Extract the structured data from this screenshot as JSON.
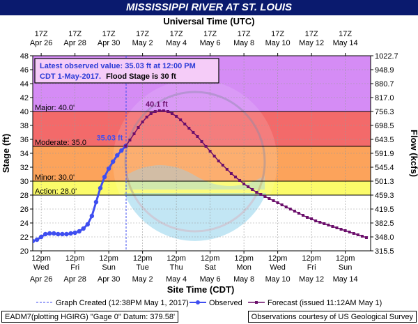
{
  "title": "MISSISSIPPI RIVER AT ST. LOUIS",
  "colors": {
    "title_bg": "#0a1a6e",
    "above_major": "#d58cf5",
    "major": "#f36a6a",
    "moderate": "#fca35b",
    "minor": "#fbfb6a",
    "below": "#ffffff",
    "observed": "#3f4ef0",
    "forecast": "#6b0f6b"
  },
  "info_box": {
    "line1": "Latest observed value: 35.03 ft at 12:00 PM",
    "line2": "CDT 1-May-2017.",
    "line2b": "Flood Stage is 30 ft"
  },
  "legend": {
    "created": "Graph Created (12:38PM May 1, 2017)",
    "observed": "Observed",
    "forecast": "Forecast (issued 11:12AM May 1)"
  },
  "footer": {
    "left": "EADM7(plotting HGIRG) \"Gage 0\" Datum: 379.58'",
    "right": "Observations courtesy of US Geological Survey"
  },
  "chart_data": {
    "type": "line",
    "title": "MISSISSIPPI RIVER AT ST. LOUIS",
    "xlabel": "Site Time (CDT)",
    "x2label": "Universal Time (UTC)",
    "ylabel": "Stage (ft)",
    "y2label": "Flow (kcfs)",
    "ylim": [
      20,
      48
    ],
    "y_ticks": [
      20,
      22,
      24,
      26,
      28,
      30,
      32,
      34,
      36,
      38,
      40,
      42,
      44,
      46,
      48
    ],
    "flow_ticks": [
      "315.5",
      "348.0",
      "382.5",
      "419.5",
      "459.3",
      "501.3",
      "545.4",
      "591.9",
      "643.5",
      "698.5",
      "756.3",
      "817.0",
      "880.7",
      "948.9",
      "1022.7"
    ],
    "bottom_ticks": [
      {
        "time": "12pm",
        "day": "Wed",
        "date": "Apr 26"
      },
      {
        "time": "12pm",
        "day": "Fri",
        "date": "Apr 28"
      },
      {
        "time": "12pm",
        "day": "Sun",
        "date": "Apr 30"
      },
      {
        "time": "12pm",
        "day": "Tue",
        "date": "May 2"
      },
      {
        "time": "12pm",
        "day": "Thu",
        "date": "May 4"
      },
      {
        "time": "12pm",
        "day": "Sat",
        "date": "May 6"
      },
      {
        "time": "12pm",
        "day": "Mon",
        "date": "May 8"
      },
      {
        "time": "12pm",
        "day": "Wed",
        "date": "May 10"
      },
      {
        "time": "12pm",
        "day": "Fri",
        "date": "May 12"
      },
      {
        "time": "12pm",
        "day": "Sun",
        "date": "May 14"
      }
    ],
    "top_ticks": [
      {
        "time": "17Z",
        "date": "Apr 26"
      },
      {
        "time": "17Z",
        "date": "Apr 28"
      },
      {
        "time": "17Z",
        "date": "Apr 30"
      },
      {
        "time": "17Z",
        "date": "May 2"
      },
      {
        "time": "17Z",
        "date": "May 4"
      },
      {
        "time": "17Z",
        "date": "May 6"
      },
      {
        "time": "17Z",
        "date": "May 8"
      },
      {
        "time": "17Z",
        "date": "May 10"
      },
      {
        "time": "17Z",
        "date": "May 12"
      },
      {
        "time": "17Z",
        "date": "May 14"
      }
    ],
    "x_range": [
      "2017-04-26T00:00",
      "2017-05-16T00:00"
    ],
    "thresholds": [
      {
        "label": "Major: 40.0'",
        "value": 40.0
      },
      {
        "label": "Moderate: 35.0",
        "value": 35.0
      },
      {
        "label": "Minor: 30.0'",
        "value": 30.0
      },
      {
        "label": "Action: 28.0'",
        "value": 28.0
      }
    ],
    "graph_created": "2017-05-01T12:38",
    "observed": {
      "name": "Observed",
      "points": [
        [
          "2017-04-26T00:00",
          21.4
        ],
        [
          "2017-04-26T06:00",
          21.6
        ],
        [
          "2017-04-26T12:00",
          22.0
        ],
        [
          "2017-04-26T18:00",
          22.4
        ],
        [
          "2017-04-27T00:00",
          22.5
        ],
        [
          "2017-04-27T06:00",
          22.5
        ],
        [
          "2017-04-27T12:00",
          22.4
        ],
        [
          "2017-04-27T18:00",
          22.4
        ],
        [
          "2017-04-28T00:00",
          22.4
        ],
        [
          "2017-04-28T06:00",
          22.5
        ],
        [
          "2017-04-28T12:00",
          22.6
        ],
        [
          "2017-04-28T18:00",
          22.8
        ],
        [
          "2017-04-29T00:00",
          23.2
        ],
        [
          "2017-04-29T06:00",
          23.8
        ],
        [
          "2017-04-29T12:00",
          25.0
        ],
        [
          "2017-04-29T18:00",
          27.0
        ],
        [
          "2017-04-30T00:00",
          29.0
        ],
        [
          "2017-04-30T06:00",
          30.6
        ],
        [
          "2017-04-30T12:00",
          31.8
        ],
        [
          "2017-04-30T18:00",
          32.8
        ],
        [
          "2017-05-01T00:00",
          33.7
        ],
        [
          "2017-05-01T06:00",
          34.4
        ],
        [
          "2017-05-01T12:00",
          35.03
        ]
      ]
    },
    "forecast": {
      "name": "Forecast (issued 11:12AM May 1)",
      "points": [
        [
          "2017-05-01T12:00",
          35.03
        ],
        [
          "2017-05-01T18:00",
          35.9
        ],
        [
          "2017-05-02T00:00",
          36.8
        ],
        [
          "2017-05-02T06:00",
          37.7
        ],
        [
          "2017-05-02T12:00",
          38.5
        ],
        [
          "2017-05-02T18:00",
          39.2
        ],
        [
          "2017-05-03T00:00",
          39.7
        ],
        [
          "2017-05-03T06:00",
          40.0
        ],
        [
          "2017-05-03T12:00",
          40.1
        ],
        [
          "2017-05-03T18:00",
          40.1
        ],
        [
          "2017-05-04T00:00",
          40.0
        ],
        [
          "2017-05-04T06:00",
          39.7
        ],
        [
          "2017-05-04T12:00",
          39.3
        ],
        [
          "2017-05-04T18:00",
          38.8
        ],
        [
          "2017-05-05T00:00",
          38.2
        ],
        [
          "2017-05-05T06:00",
          37.6
        ],
        [
          "2017-05-05T12:00",
          37.0
        ],
        [
          "2017-05-05T18:00",
          36.4
        ],
        [
          "2017-05-06T00:00",
          35.7
        ],
        [
          "2017-05-06T06:00",
          35.0
        ],
        [
          "2017-05-06T12:00",
          34.3
        ],
        [
          "2017-05-06T18:00",
          33.6
        ],
        [
          "2017-05-07T00:00",
          32.9
        ],
        [
          "2017-05-07T06:00",
          32.3
        ],
        [
          "2017-05-07T12:00",
          31.7
        ],
        [
          "2017-05-07T18:00",
          31.1
        ],
        [
          "2017-05-08T00:00",
          30.6
        ],
        [
          "2017-05-08T06:00",
          30.1
        ],
        [
          "2017-05-08T12:00",
          29.6
        ],
        [
          "2017-05-08T18:00",
          29.2
        ],
        [
          "2017-05-09T00:00",
          28.8
        ],
        [
          "2017-05-09T06:00",
          28.4
        ],
        [
          "2017-05-09T12:00",
          28.1
        ],
        [
          "2017-05-09T18:00",
          27.8
        ],
        [
          "2017-05-10T00:00",
          27.5
        ],
        [
          "2017-05-10T06:00",
          27.2
        ],
        [
          "2017-05-10T12:00",
          26.9
        ],
        [
          "2017-05-10T18:00",
          26.6
        ],
        [
          "2017-05-11T00:00",
          26.3
        ],
        [
          "2017-05-11T06:00",
          26.0
        ],
        [
          "2017-05-11T12:00",
          25.7
        ],
        [
          "2017-05-11T18:00",
          25.4
        ],
        [
          "2017-05-12T00:00",
          25.1
        ],
        [
          "2017-05-12T06:00",
          24.8
        ],
        [
          "2017-05-12T12:00",
          24.6
        ],
        [
          "2017-05-12T18:00",
          24.3
        ],
        [
          "2017-05-13T00:00",
          24.1
        ],
        [
          "2017-05-13T06:00",
          23.9
        ],
        [
          "2017-05-13T12:00",
          23.7
        ],
        [
          "2017-05-13T18:00",
          23.5
        ],
        [
          "2017-05-14T00:00",
          23.3
        ],
        [
          "2017-05-14T06:00",
          23.1
        ],
        [
          "2017-05-14T12:00",
          22.9
        ],
        [
          "2017-05-14T18:00",
          22.7
        ],
        [
          "2017-05-15T00:00",
          22.5
        ],
        [
          "2017-05-15T06:00",
          22.3
        ],
        [
          "2017-05-15T12:00",
          22.1
        ],
        [
          "2017-05-15T18:00",
          21.9
        ]
      ]
    },
    "annotations": [
      {
        "text": "35.03 ft",
        "x": "2017-05-01T12:00",
        "y": 35.03
      },
      {
        "text": "40.1 ft",
        "x": "2017-05-03T12:00",
        "y": 40.1
      }
    ],
    "grid": true,
    "watermark": "U.S. DEPARTMENT OF COMMERCE / NATIONAL OCEANIC AND ATMOSPHERIC ADMINISTRATION"
  }
}
